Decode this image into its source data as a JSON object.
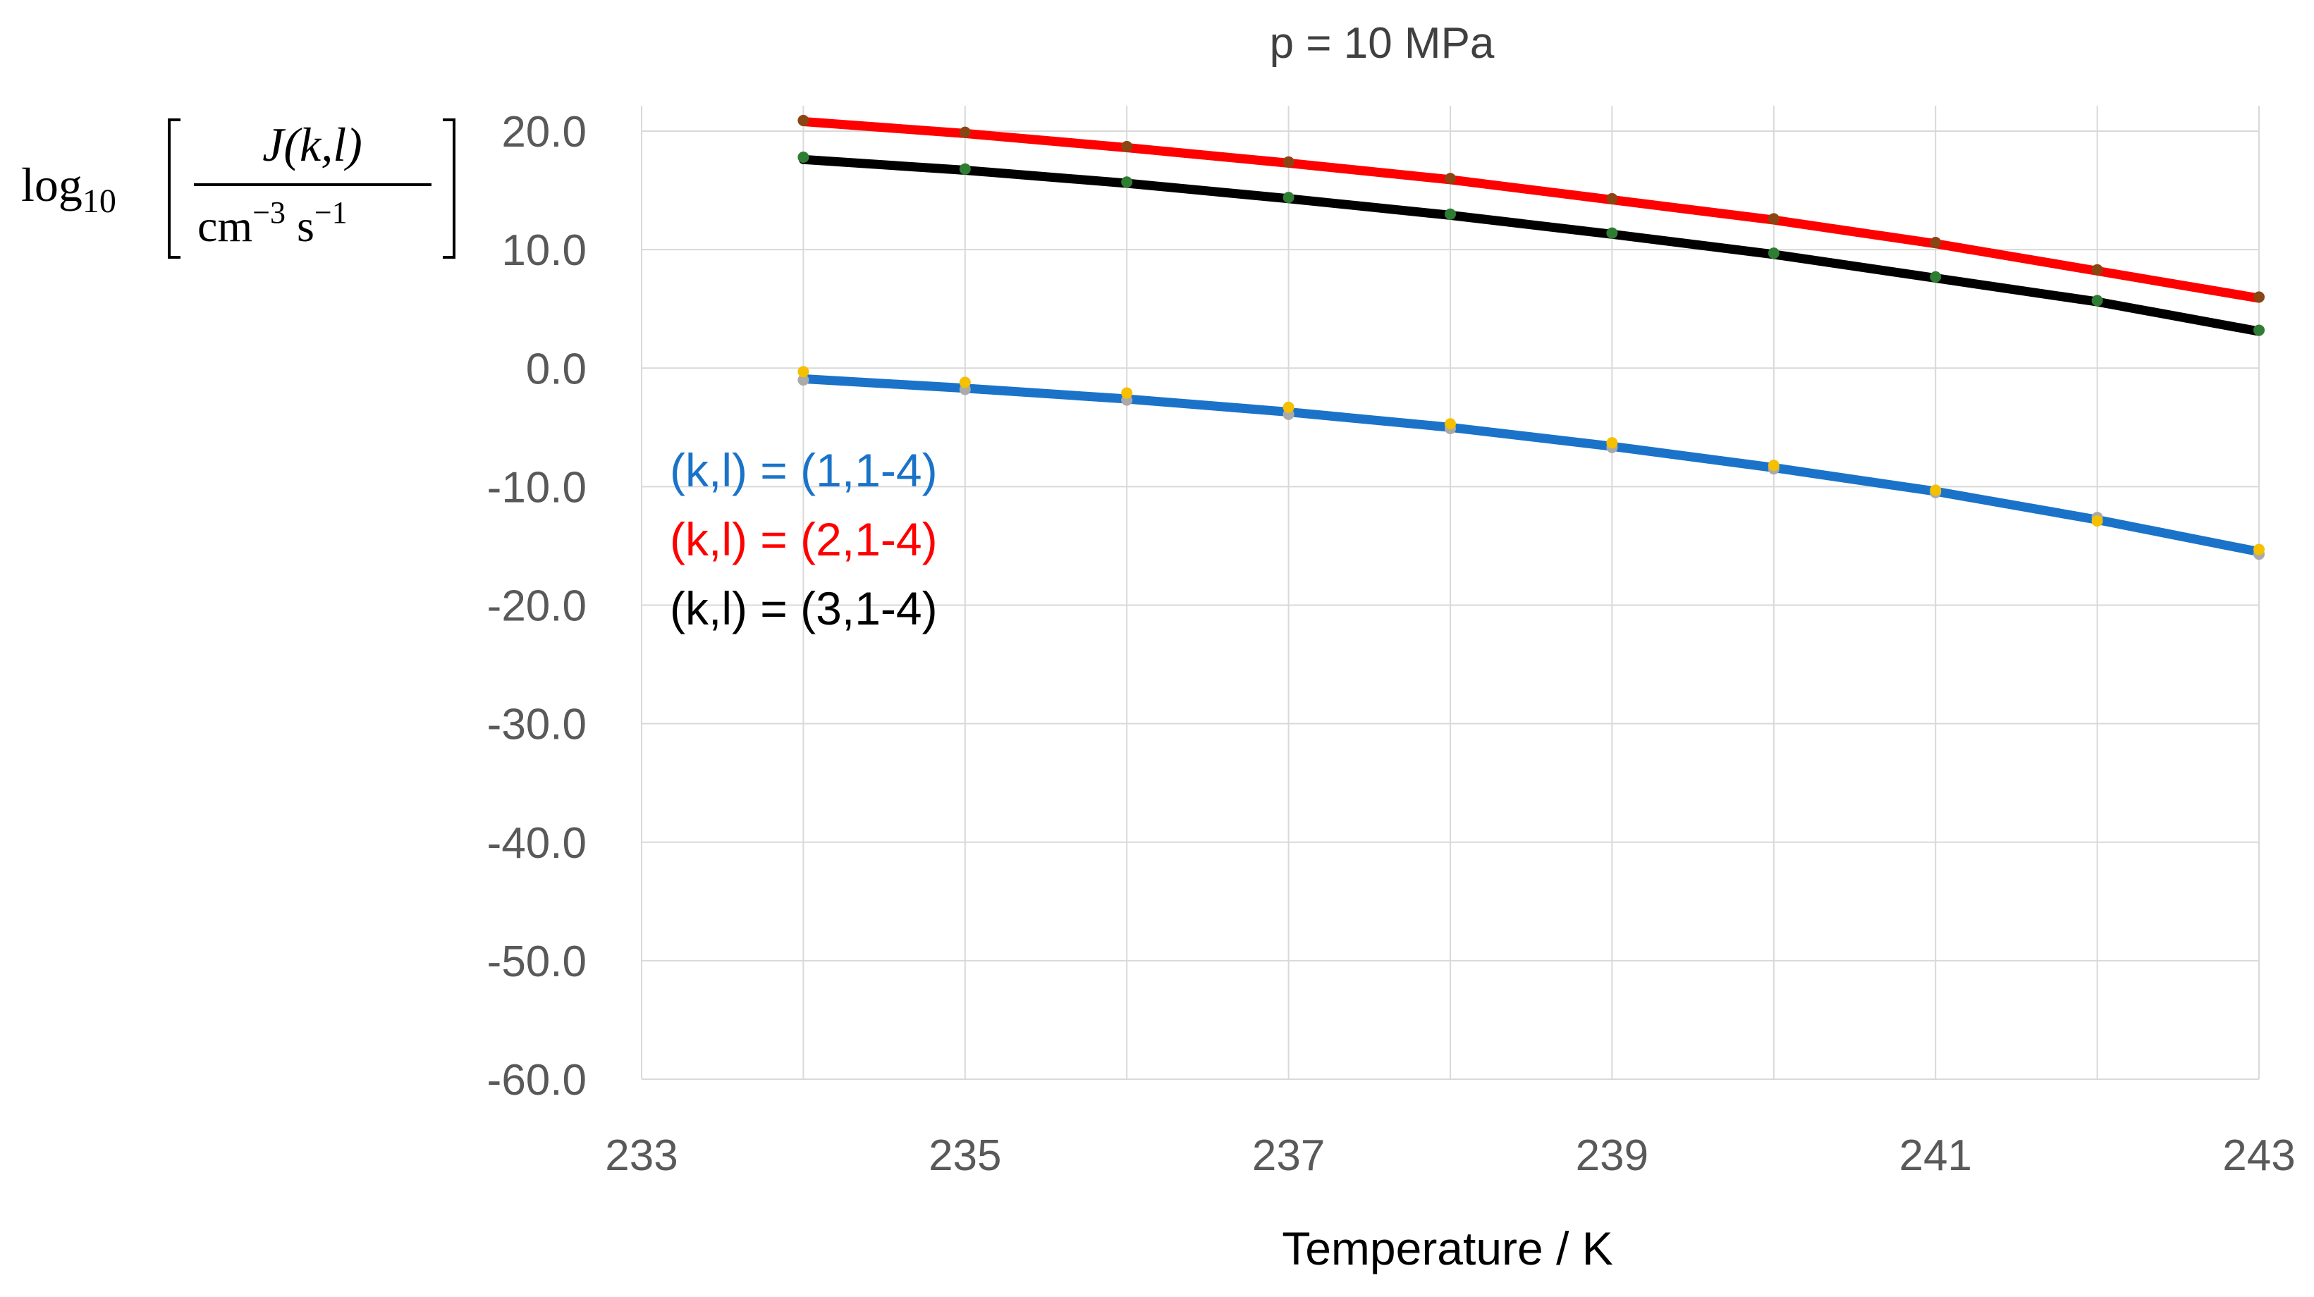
{
  "chart_data": {
    "type": "line",
    "title": "p = 10 MPa",
    "xlabel": "Temperature / K",
    "ylabel": {
      "prefix": "log",
      "subscript": "10",
      "numerator": "J(k,l)",
      "denominator_base_cm": "cm",
      "denominator_exp_cm": "−3",
      "denominator_base_s": "s",
      "denominator_exp_s": "−1"
    },
    "xlim": [
      233,
      243
    ],
    "ylim": [
      -60,
      22
    ],
    "x_ticks": [
      233,
      235,
      237,
      239,
      241,
      243
    ],
    "x_tick_labels": [
      "233",
      "235",
      "237",
      "239",
      "241",
      "243"
    ],
    "y_ticks": [
      20,
      10,
      0,
      -10,
      -20,
      -30,
      -40,
      -50,
      -60
    ],
    "y_tick_labels": [
      "20.0",
      "10.0",
      "0.0",
      "-10.0",
      "-20.0",
      "-30.0",
      "-40.0",
      "-50.0",
      "-60.0"
    ],
    "x_gridlines": [
      233,
      235,
      237,
      239,
      241,
      243
    ],
    "x_minor_gridlines": [
      234,
      236,
      238,
      240,
      242
    ],
    "y_gridlines": [
      20,
      10,
      0,
      -10,
      -20,
      -30,
      -40,
      -50,
      -60
    ],
    "grid": true,
    "x": [
      234,
      235,
      236,
      237,
      238,
      239,
      240,
      241,
      242,
      243
    ],
    "series": [
      {
        "name": "(k,l) = (1,1-4)",
        "color": "#1a73c8",
        "values": [
          -0.9,
          -1.7,
          -2.6,
          -3.7,
          -5.0,
          -6.6,
          -8.4,
          -10.4,
          -12.8,
          -15.5
        ],
        "markers": [
          {
            "color": "#aaaaaa",
            "values": [
              -1.0,
              -1.8,
              -2.7,
              -3.9,
              -5.1,
              -6.7,
              -8.5,
              -10.5,
              -12.6,
              -15.7
            ]
          },
          {
            "color": "#f5c000",
            "values": [
              -0.3,
              -1.2,
              -2.1,
              -3.3,
              -4.7,
              -6.3,
              -8.2,
              -10.3,
              -12.9,
              -15.3
            ]
          }
        ]
      },
      {
        "name": "(k,l) = (2,1-4)",
        "color": "#ff0000",
        "values": [
          20.8,
          19.8,
          18.6,
          17.3,
          15.9,
          14.2,
          12.5,
          10.5,
          8.2,
          5.9
        ],
        "markers": [
          {
            "color": "#8b4513",
            "values": [
              20.9,
              19.9,
              18.7,
              17.4,
              16.0,
              14.3,
              12.6,
              10.6,
              8.3,
              6.0
            ]
          }
        ]
      },
      {
        "name": "(k,l) = (3,1-4)",
        "color": "#000000",
        "values": [
          17.6,
          16.7,
          15.6,
          14.3,
          12.9,
          11.3,
          9.6,
          7.6,
          5.6,
          3.1
        ],
        "markers": [
          {
            "color": "#2e7d32",
            "values": [
              17.8,
              16.8,
              15.7,
              14.4,
              13.0,
              11.4,
              9.7,
              7.7,
              5.7,
              3.2
            ]
          }
        ]
      }
    ],
    "legend": {
      "placement": "left-inside",
      "entries": [
        {
          "text": "(k,l) = (1,1-4)",
          "color": "#1a73c8"
        },
        {
          "text": "(k,l) = (2,1-4)",
          "color": "#ff0000"
        },
        {
          "text": "(k,l) = (3,1-4)",
          "color": "#000000"
        }
      ]
    },
    "colors": {
      "grid": "#d9d9d9",
      "tick_text": "#595959",
      "title_text": "#404040"
    }
  }
}
